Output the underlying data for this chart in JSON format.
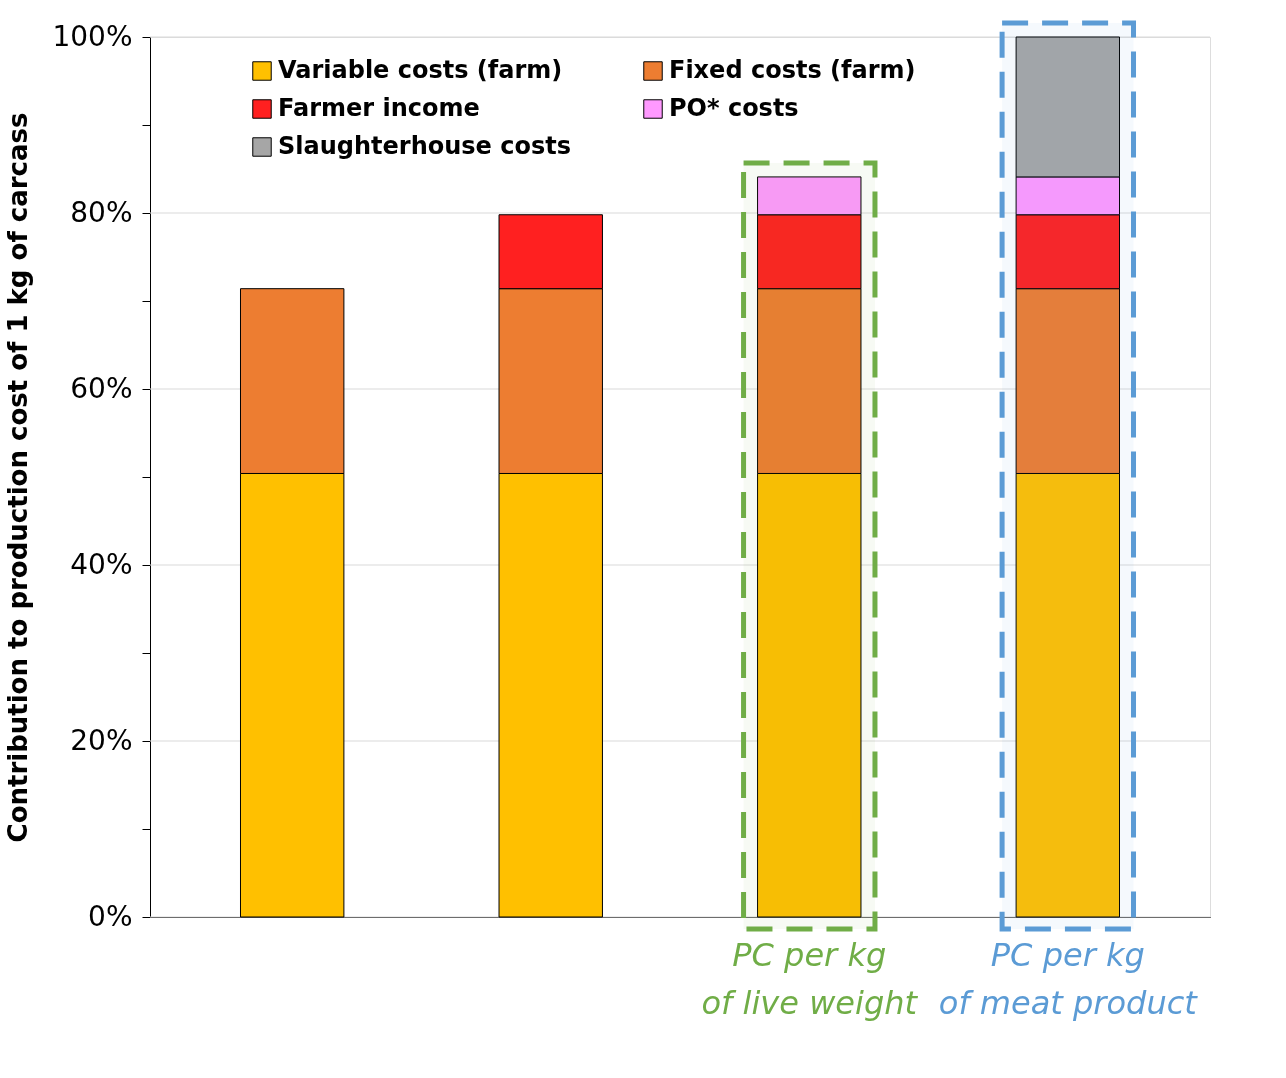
{
  "chart_data": {
    "type": "bar",
    "stacked": true,
    "ylabel": "Contribution to production cost of 1 kg of carcass",
    "categories": [
      null,
      null,
      "PC per kg of live weight",
      "PC per kg of meat product"
    ],
    "series": [
      {
        "name": "Variable costs (farm)",
        "color": "#ffc000",
        "values": [
          50.4,
          50.4,
          50.4,
          50.4
        ]
      },
      {
        "name": "Fixed costs (farm)",
        "color": "#ed7d31",
        "values": [
          21.0,
          21.0,
          21.0,
          21.0
        ]
      },
      {
        "name": "Farmer income",
        "color": "#ff2020",
        "values": [
          null,
          8.4,
          8.4,
          8.4
        ]
      },
      {
        "name": "PO* costs",
        "color": "#ff99ff",
        "values": [
          null,
          null,
          4.3,
          4.3
        ]
      },
      {
        "name": "Slaughterhouse costs",
        "color": "#a6a6a6",
        "values": [
          null,
          null,
          null,
          15.9
        ]
      }
    ],
    "ylim": [
      0,
      100
    ],
    "yticks": [
      {
        "value": 0,
        "label": "0%"
      },
      {
        "value": 10,
        "label": null
      },
      {
        "value": 20,
        "label": "20%"
      },
      {
        "value": 30,
        "label": null
      },
      {
        "value": 40,
        "label": "40%"
      },
      {
        "value": 50,
        "label": null
      },
      {
        "value": 60,
        "label": "60%"
      },
      {
        "value": 70,
        "label": null
      },
      {
        "value": 80,
        "label": "80%"
      },
      {
        "value": 90,
        "label": null
      },
      {
        "value": 100,
        "label": "100%"
      }
    ],
    "bands": [
      {
        "axis": "x",
        "from": "PC per kg of live weight",
        "to": "PC per kg of live weight",
        "color": "#70ad47"
      },
      {
        "axis": "x",
        "from": "PC per kg of meat product",
        "to": "PC per kg of meat product",
        "color": "#5b9bd5"
      }
    ],
    "grid": "y",
    "legend": "top left"
  }
}
